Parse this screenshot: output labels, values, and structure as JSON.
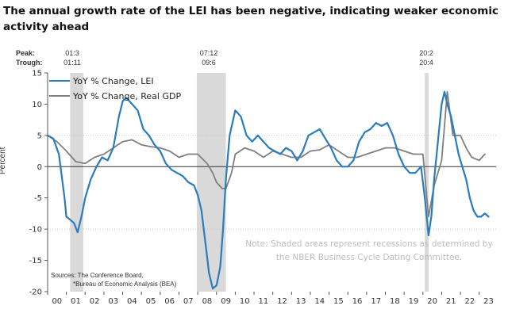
{
  "title": "The annual growth rate of the LEI has been negative, indicating weaker economic activity ahead",
  "peak_label": "Peak:",
  "trough_label": "Trough:",
  "recessions": [
    {
      "peak": "01:3",
      "trough": "01:11",
      "start": 2001.2,
      "end": 2001.9
    },
    {
      "peak": "07:12",
      "trough": "09:6",
      "start": 2007.95,
      "end": 2009.5
    },
    {
      "peak": "20:2",
      "trough": "20:4",
      "start": 2020.1,
      "end": 2020.3
    }
  ],
  "ylabel": "Percent",
  "source_lines": [
    "Sources: The Conference Board,",
    "*Bureau of Economic Analysis (BEA)"
  ],
  "note": "Note: Shaded areas represent recessions as determined by the NBER Business Cycle Dating Committee.",
  "colors": {
    "lei": "#2b7bbf",
    "gdp": "#7f7f7f",
    "recession": "#d9d9d9"
  },
  "chart_data": {
    "type": "line",
    "ylim": [
      -20,
      15
    ],
    "yticks": [
      -20,
      -15,
      -10,
      -5,
      0,
      5,
      10,
      15
    ],
    "xlim": [
      2000,
      2023.9
    ],
    "xticks": [
      "00",
      "01",
      "02",
      "03",
      "04",
      "05",
      "06",
      "07",
      "08",
      "09",
      "10",
      "11",
      "12",
      "13",
      "14",
      "15",
      "16",
      "17",
      "18",
      "19",
      "20",
      "21",
      "22",
      "23"
    ],
    "series": [
      {
        "name": "YoY % Change, LEI",
        "x": [
          2000.0,
          2000.3,
          2000.6,
          2000.9,
          2001.0,
          2001.2,
          2001.4,
          2001.6,
          2001.8,
          2002.0,
          2002.3,
          2002.6,
          2002.9,
          2003.2,
          2003.5,
          2003.8,
          2004.0,
          2004.2,
          2004.5,
          2004.8,
          2005.1,
          2005.4,
          2005.7,
          2006.0,
          2006.3,
          2006.6,
          2006.9,
          2007.2,
          2007.5,
          2007.8,
          2008.0,
          2008.2,
          2008.4,
          2008.6,
          2008.8,
          2009.0,
          2009.2,
          2009.35,
          2009.5,
          2009.7,
          2010.0,
          2010.3,
          2010.6,
          2010.9,
          2011.2,
          2011.5,
          2011.8,
          2012.1,
          2012.4,
          2012.7,
          2013.0,
          2013.3,
          2013.6,
          2013.9,
          2014.2,
          2014.5,
          2014.8,
          2015.1,
          2015.4,
          2015.7,
          2016.0,
          2016.3,
          2016.6,
          2016.9,
          2017.2,
          2017.5,
          2017.8,
          2018.1,
          2018.4,
          2018.7,
          2019.0,
          2019.3,
          2019.6,
          2019.9,
          2020.1,
          2020.3,
          2020.45,
          2020.6,
          2020.8,
          2021.0,
          2021.15,
          2021.3,
          2021.5,
          2021.7,
          2021.9,
          2022.1,
          2022.3,
          2022.5,
          2022.7,
          2022.9,
          2023.1,
          2023.3,
          2023.5
        ],
        "values": [
          5,
          4.5,
          2,
          -5,
          -8,
          -8.5,
          -9,
          -10.5,
          -8,
          -5,
          -2,
          0,
          1.5,
          1,
          3,
          8,
          10.5,
          11,
          10,
          9,
          6,
          5,
          3.5,
          2.5,
          0.5,
          -0.5,
          -1,
          -1.5,
          -2.5,
          -3,
          -4.5,
          -7,
          -12,
          -17,
          -19.5,
          -19,
          -16,
          -10,
          -2,
          5,
          9,
          8,
          5,
          4,
          5,
          4,
          3,
          2.5,
          2,
          3,
          2.5,
          1,
          2.5,
          5,
          5.5,
          6,
          4.5,
          3,
          1,
          0,
          0,
          1,
          4,
          5.5,
          6,
          7,
          6.5,
          7,
          5,
          2,
          0,
          -1,
          -1,
          0,
          -5,
          -11,
          -8,
          -2,
          4,
          10,
          12,
          10,
          8,
          5,
          2,
          0,
          -2,
          -5,
          -7,
          -8,
          -8,
          -7.5,
          -8
        ]
      },
      {
        "name": "YoY % Change, Real GDP",
        "x": [
          2000.0,
          2000.5,
          2001.0,
          2001.5,
          2002.0,
          2002.5,
          2003.0,
          2003.5,
          2004.0,
          2004.5,
          2005.0,
          2005.5,
          2006.0,
          2006.5,
          2007.0,
          2007.5,
          2008.0,
          2008.5,
          2008.8,
          2009.0,
          2009.3,
          2009.5,
          2009.8,
          2010.0,
          2010.5,
          2011.0,
          2011.5,
          2012.0,
          2012.5,
          2013.0,
          2013.5,
          2014.0,
          2014.5,
          2015.0,
          2015.5,
          2016.0,
          2016.5,
          2017.0,
          2017.5,
          2018.0,
          2018.5,
          2019.0,
          2019.5,
          2020.0,
          2020.3,
          2020.6,
          2021.0,
          2021.3,
          2021.6,
          2022.0,
          2022.3,
          2022.6,
          2023.0,
          2023.3
        ],
        "values": [
          5,
          4,
          2.5,
          0.8,
          0.5,
          1.5,
          2,
          3,
          4,
          4.3,
          3.5,
          3.2,
          3,
          2.5,
          1.5,
          2,
          2,
          0.5,
          -1,
          -2.5,
          -3.5,
          -3.5,
          -1,
          2,
          3,
          2.5,
          1.5,
          2.5,
          2,
          1.5,
          1.5,
          2.5,
          2.7,
          3.5,
          2.5,
          1.5,
          1.5,
          2,
          2.5,
          3,
          3,
          2.5,
          2,
          2,
          -8,
          -3,
          1,
          12,
          5,
          5,
          3,
          1.5,
          1,
          2
        ]
      }
    ]
  }
}
